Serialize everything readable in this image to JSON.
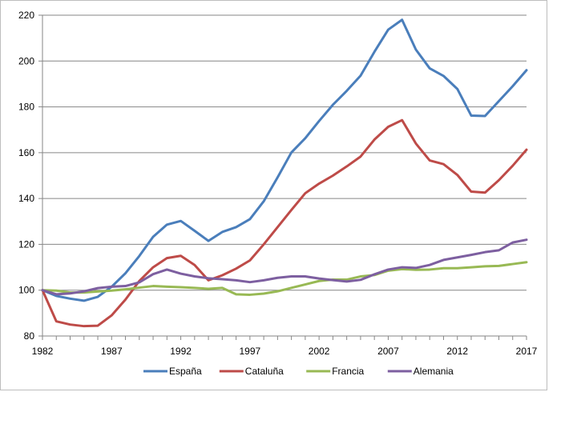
{
  "chart_data": {
    "type": "line",
    "title": "",
    "xlabel": "",
    "ylabel": "",
    "x": [
      1982,
      1983,
      1984,
      1985,
      1986,
      1987,
      1988,
      1989,
      1990,
      1991,
      1992,
      1993,
      1994,
      1995,
      1996,
      1997,
      1998,
      1999,
      2000,
      2001,
      2002,
      2003,
      2004,
      2005,
      2006,
      2007,
      2008,
      2009,
      2010,
      2011,
      2012,
      2013,
      2014,
      2015,
      2016,
      2017
    ],
    "xticks": [
      1982,
      1987,
      1992,
      1997,
      2002,
      2007,
      2012,
      2017
    ],
    "yticks": [
      80,
      100,
      120,
      140,
      160,
      180,
      200,
      220
    ],
    "xlim": [
      1982,
      2017
    ],
    "ylim": [
      80,
      220
    ],
    "grid": "horizontal",
    "legend_position": "bottom",
    "series": [
      {
        "name": "España",
        "color": "#4a7ebb",
        "values": [
          100,
          97.5,
          96.3,
          95.4,
          97.1,
          101.5,
          107.4,
          114.9,
          123.3,
          128.6,
          130.2,
          125.9,
          121.5,
          125.4,
          127.5,
          131,
          138.8,
          149.2,
          160.1,
          166.3,
          173.8,
          180.9,
          187,
          193.6,
          204,
          213.7,
          218,
          205,
          196.8,
          193.5,
          187.8,
          176.2,
          176,
          182.5,
          189,
          196
        ]
      },
      {
        "name": "Cataluña",
        "color": "#be4b48",
        "values": [
          100,
          86.4,
          85,
          84.3,
          84.5,
          89,
          95.9,
          104,
          110,
          114,
          115,
          111,
          104.3,
          106.5,
          109.4,
          113,
          120,
          127.5,
          135,
          142.3,
          146.5,
          150,
          154,
          158.3,
          165.7,
          171.3,
          174.2,
          164,
          156.6,
          155,
          150.3,
          143,
          142.6,
          148,
          154.3,
          161.3
        ]
      },
      {
        "name": "Francia",
        "color": "#98b954",
        "values": [
          100,
          99.8,
          99,
          99,
          99.4,
          99.8,
          100.4,
          101.1,
          101.8,
          101.5,
          101.3,
          101,
          100.6,
          101,
          98.2,
          98,
          98.5,
          99.5,
          101,
          102.5,
          104,
          104.6,
          104.6,
          106,
          106.6,
          108.5,
          109.2,
          108.9,
          109,
          109.6,
          109.6,
          110,
          110.4,
          110.6,
          111.4,
          112.2
        ]
      },
      {
        "name": "Alemania",
        "color": "#7d5fa0",
        "values": [
          100,
          98.2,
          98.6,
          99.5,
          100.9,
          101.5,
          101.8,
          103.4,
          107,
          109,
          107.2,
          106,
          105.2,
          104.8,
          104.3,
          103.5,
          104.3,
          105.4,
          106,
          106,
          105.1,
          104.4,
          103.8,
          104.5,
          106.9,
          109,
          110,
          109.7,
          111,
          113.2,
          114.3,
          115.4,
          116.6,
          117.4,
          120.8,
          122
        ]
      }
    ]
  }
}
